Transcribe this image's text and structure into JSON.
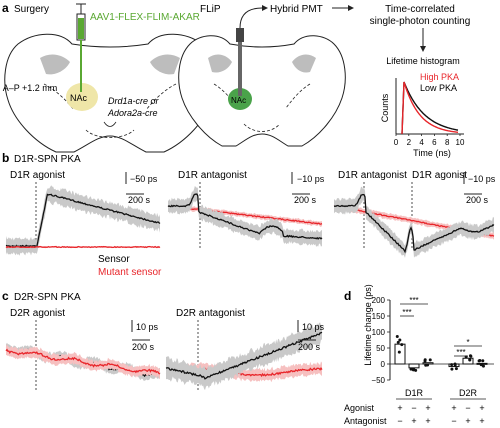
{
  "panels": {
    "a": {
      "letter": "a",
      "surgery_title": "Surgery",
      "flip_title": "FLiP",
      "virus": "AAV1-FLEX-FLIM-AKAR",
      "coords": "A–P +1.2 mm",
      "line1": "Drd1a-cre or",
      "line2": "Adora2a-cre",
      "region": "NAc",
      "pmt": "Hybrid PMT",
      "tcspc1": "Time-correlated",
      "tcspc2": "single-photon counting",
      "hist_title": "Lifetime histogram",
      "high": "High PKA",
      "low": "Low PKA",
      "ylabel": "Counts",
      "xlabel": "Time (ns)",
      "ticks": [
        "0",
        "2",
        "4",
        "6",
        "8",
        "10"
      ],
      "colors": {
        "high": "#e8262b",
        "virus": "#5aa832",
        "nac": "#efe6a8",
        "nac2": "#4aa34a"
      }
    },
    "b": {
      "letter": "b",
      "title": "D1R-SPN PKA",
      "p1_label": "D1R agonist",
      "p1_scale_y": "−50 ps",
      "p1_scale_x": "200 s",
      "p2_label": "D1R antagonist",
      "p2_scale_y": "−10 ps",
      "p2_scale_x": "200 s",
      "p3_label1": "D1R antagonist",
      "p3_label2": "D1R agonist",
      "p3_scale_y": "−10 ps",
      "p3_scale_x": "200 s",
      "legend_sensor": "Sensor",
      "legend_mutant": "Mutant sensor"
    },
    "c": {
      "letter": "c",
      "title": "D2R-SPN PKA",
      "p1_label": "D2R agonist",
      "p1_scale_y": "10 ps",
      "p1_scale_x": "200 s",
      "p2_label": "D2R antagonist",
      "p2_scale_y": "10 ps",
      "p2_scale_x": "200 s"
    },
    "d": {
      "letter": "d",
      "ylabel": "Lifetime change (ps)",
      "yticks": [
        "−50",
        "0",
        "50",
        "100",
        "150",
        "200"
      ],
      "group1": "D1R",
      "group2": "D2R",
      "row1_label": "Agonist",
      "row2_label": "Antagonist",
      "row1": [
        "+",
        "−",
        "+",
        "+",
        "−",
        "+"
      ],
      "row2": [
        "−",
        "+",
        "+",
        "−",
        "+",
        "+"
      ],
      "sig": [
        "***",
        "***",
        "*",
        "***"
      ]
    }
  },
  "chart_data": {
    "type": "bar",
    "categories": [
      "D1R ago",
      "D1R antago",
      "D1R ago+antago",
      "D2R ago",
      "D2R antago",
      "D2R ago+antago"
    ],
    "values": [
      62,
      -12,
      4,
      -8,
      18,
      2
    ],
    "ylabel": "Lifetime change (ps)",
    "ylim": [
      -50,
      200
    ]
  }
}
